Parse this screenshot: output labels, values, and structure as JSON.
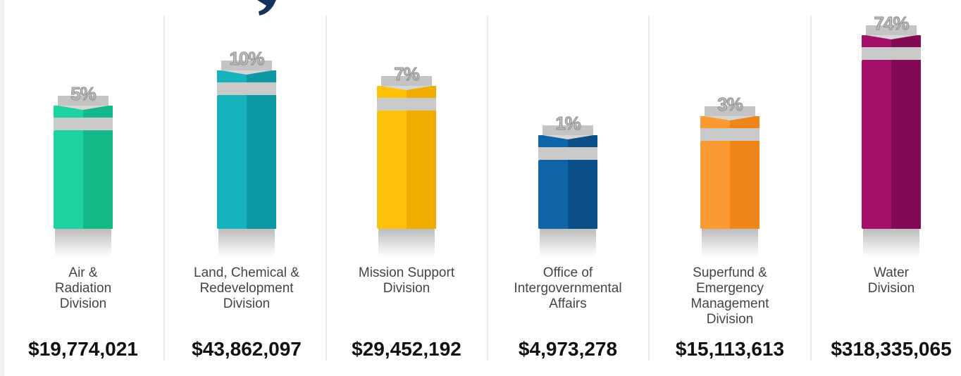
{
  "columns": [
    {
      "label_lines": [
        "Air &",
        "Radiation",
        "Division"
      ],
      "percent": "5%",
      "amount": "$19,774,021",
      "color": "#1fd3a0",
      "dark": "#14b987"
    },
    {
      "label_lines": [
        "Land, Chemical &",
        "Redevelopment",
        "Division"
      ],
      "percent": "10%",
      "amount": "$43,862,097",
      "color": "#16b3bd",
      "dark": "#0e98a2"
    },
    {
      "label_lines": [
        "Mission Support",
        "Division"
      ],
      "percent": "7%",
      "amount": "$29,452,192",
      "color": "#fdc30a",
      "dark": "#f0ae00"
    },
    {
      "label_lines": [
        "Office of",
        "Intergovernmental",
        "Affairs"
      ],
      "percent": "1%",
      "amount": "$4,973,278",
      "color": "#0e64a6",
      "dark": "#0a4f88"
    },
    {
      "label_lines": [
        "Superfund &",
        "Emergency",
        "Management",
        "Division"
      ],
      "percent": "3%",
      "amount": "$15,113,613",
      "color": "#fb9933",
      "dark": "#f0851a"
    },
    {
      "label_lines": [
        "Water",
        "Division"
      ],
      "percent": "74%",
      "amount": "$318,335,065",
      "color": "#a3106a",
      "dark": "#850a55"
    }
  ]
}
